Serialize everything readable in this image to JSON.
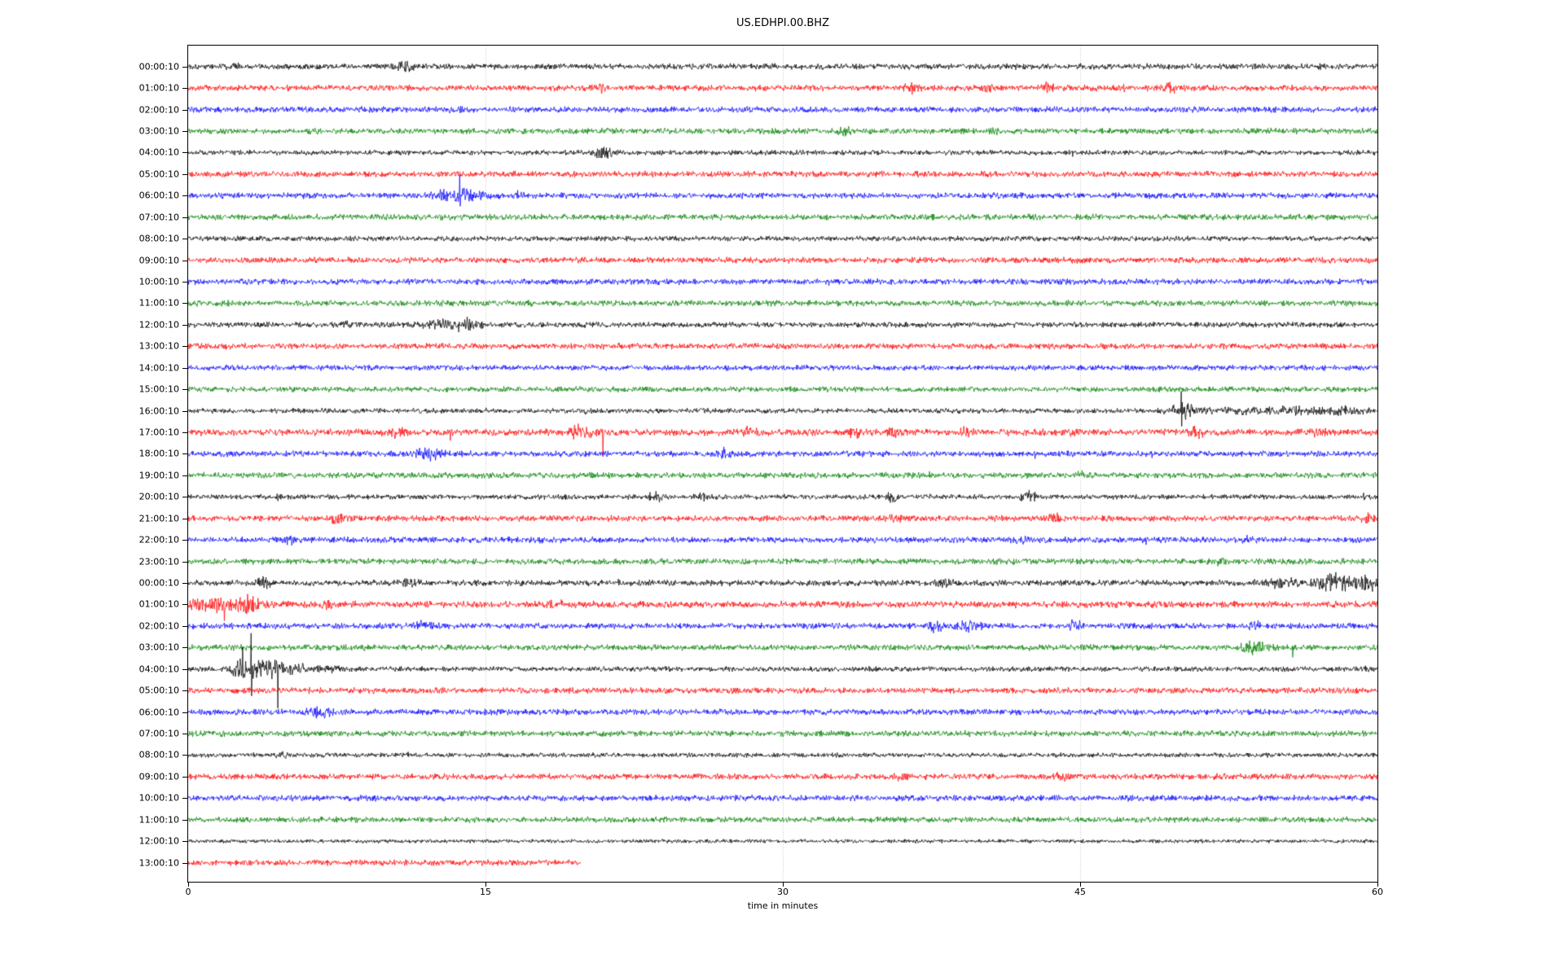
{
  "window": {
    "title": "US.EDHPI.00.BHZ"
  },
  "chart_data": {
    "type": "line",
    "subtype": "seismogram-helicorder-dayplot",
    "title": "US.EDHPI.00.BHZ",
    "xlabel": "time in minutes",
    "xlim": [
      0,
      60
    ],
    "xticks": [
      "0",
      "15",
      "30",
      "45",
      "60"
    ],
    "xtick_values": [
      0,
      15,
      30,
      45,
      60
    ],
    "grid_x": [
      15,
      30,
      45
    ],
    "grid_style": "dotted",
    "grid_color": "#b3b3b3",
    "legend": "none",
    "trace_colors_cycle": [
      "#000000",
      "#ff0000",
      "#0000ff",
      "#008000"
    ],
    "rows": [
      {
        "label": "00:00:10",
        "color": "#000000",
        "amp": 2.8,
        "end": 60,
        "events": [
          {
            "t": 2.3,
            "amp": 2,
            "w": 0.3
          },
          {
            "t": 10.9,
            "amp": 3.5,
            "w": 0.5
          },
          {
            "t": 57.1,
            "up": 4,
            "down": 4
          }
        ]
      },
      {
        "label": "01:00:10",
        "color": "#ff0000",
        "amp": 2.8,
        "end": 60,
        "events": [
          {
            "t": 20.8,
            "amp": 2.5,
            "w": 0.25
          },
          {
            "t": 36.5,
            "up": 7,
            "down": 8
          },
          {
            "t": 36.5,
            "amp": 3,
            "w": 0.35
          },
          {
            "t": 40.3,
            "amp": 3,
            "w": 0.25
          },
          {
            "t": 43.4,
            "amp": 3.5,
            "w": 0.3
          },
          {
            "t": 47.2,
            "up": 5,
            "down": 5
          },
          {
            "t": 49.6,
            "amp": 3,
            "w": 0.4
          }
        ]
      },
      {
        "label": "02:00:10",
        "color": "#0000ff",
        "amp": 2.8,
        "end": 60,
        "events": [
          {
            "t": 13.5,
            "amp": 1.5,
            "w": 0.3
          }
        ]
      },
      {
        "label": "03:00:10",
        "color": "#008000",
        "amp": 2.8,
        "end": 60,
        "events": [
          {
            "t": 33.1,
            "amp": 2.5,
            "w": 0.4
          },
          {
            "t": 40.6,
            "amp": 2,
            "w": 0.25
          }
        ]
      },
      {
        "label": "04:00:10",
        "color": "#000000",
        "amp": 2.4,
        "end": 60,
        "events": [
          {
            "t": 21,
            "amp": 4,
            "w": 0.5
          },
          {
            "t": 21.1,
            "up": 6,
            "down": 6
          },
          {
            "t": 44.6,
            "up": 2,
            "down": 5
          }
        ]
      },
      {
        "label": "05:00:10",
        "color": "#ff0000",
        "amp": 2.8,
        "end": 60,
        "events": []
      },
      {
        "label": "06:00:10",
        "color": "#0000ff",
        "amp": 2.8,
        "end": 60,
        "events": [
          {
            "t": 13.6,
            "amp": 5,
            "w": 1.1
          },
          {
            "t": 12.9,
            "up": 8,
            "down": 4
          },
          {
            "t": 13.7,
            "up": 26,
            "down": 13
          },
          {
            "t": 16.6,
            "amp": 2,
            "w": 0.2
          }
        ]
      },
      {
        "label": "07:00:10",
        "color": "#008000",
        "amp": 2.8,
        "end": 60,
        "events": []
      },
      {
        "label": "08:00:10",
        "color": "#000000",
        "amp": 2.4,
        "end": 60,
        "events": []
      },
      {
        "label": "09:00:10",
        "color": "#ff0000",
        "amp": 2.8,
        "end": 60,
        "events": []
      },
      {
        "label": "10:00:10",
        "color": "#0000ff",
        "amp": 2.8,
        "end": 60,
        "events": [
          {
            "t": 32.3,
            "up": 2,
            "down": 5
          }
        ]
      },
      {
        "label": "11:00:10",
        "color": "#008000",
        "amp": 2.8,
        "end": 60,
        "events": []
      },
      {
        "label": "12:00:10",
        "color": "#000000",
        "amp": 2.6,
        "end": 60,
        "events": [
          {
            "t": 8,
            "amp": 2.5,
            "w": 0.4
          },
          {
            "t": 12.5,
            "amp": 3,
            "w": 0.8
          },
          {
            "t": 14,
            "amp": 5,
            "w": 0.7
          },
          {
            "t": 14.2,
            "up": 7,
            "down": 7
          }
        ]
      },
      {
        "label": "13:00:10",
        "color": "#ff0000",
        "amp": 2.8,
        "end": 60,
        "events": []
      },
      {
        "label": "14:00:10",
        "color": "#0000ff",
        "amp": 2.6,
        "end": 60,
        "events": []
      },
      {
        "label": "15:00:10",
        "color": "#008000",
        "amp": 2.6,
        "end": 60,
        "events": []
      },
      {
        "label": "16:00:10",
        "color": "#000000",
        "amp": 2.4,
        "end": 60,
        "events": [
          {
            "t": 20.1,
            "amp": 2,
            "w": 0.15
          },
          {
            "t": 50.1,
            "up": 24,
            "down": 19
          },
          {
            "t": 50.3,
            "amp": 5,
            "w": 0.7
          },
          {
            "t": 53,
            "amp": 1.5,
            "w": 2
          },
          {
            "t": 56,
            "amp": 3,
            "w": 1.2
          },
          {
            "t": 55.9,
            "up": 6,
            "down": 4
          },
          {
            "t": 58.5,
            "amp": 3,
            "w": 0.8
          }
        ]
      },
      {
        "label": "17:00:10",
        "color": "#ff0000",
        "amp": 3.2,
        "end": 60,
        "events": [
          {
            "t": 10.5,
            "amp": 4,
            "w": 0.5
          },
          {
            "t": 13.2,
            "up": 3,
            "down": 10
          },
          {
            "t": 19.8,
            "amp": 5,
            "w": 0.6
          },
          {
            "t": 20.9,
            "up": 4,
            "down": 30
          },
          {
            "t": 28.4,
            "amp": 4,
            "w": 0.5
          },
          {
            "t": 33.6,
            "amp": 3,
            "w": 0.3
          },
          {
            "t": 35.6,
            "amp": 4,
            "w": 0.3
          },
          {
            "t": 39.2,
            "amp": 3,
            "w": 0.3
          },
          {
            "t": 44.5,
            "amp": 2.5,
            "w": 0.3
          },
          {
            "t": 51,
            "amp": 4,
            "w": 0.5
          },
          {
            "t": 57,
            "amp": 2,
            "w": 0.5
          }
        ]
      },
      {
        "label": "18:00:10",
        "color": "#0000ff",
        "amp": 2.8,
        "end": 60,
        "events": [
          {
            "t": 12.2,
            "amp": 4,
            "w": 0.7
          },
          {
            "t": 27,
            "amp": 3.5,
            "w": 0.4
          },
          {
            "t": 42.7,
            "up": 3,
            "down": 6
          },
          {
            "t": 48.6,
            "up": 3,
            "down": 5
          }
        ]
      },
      {
        "label": "19:00:10",
        "color": "#008000",
        "amp": 2.8,
        "end": 60,
        "events": [
          {
            "t": 37.4,
            "up": 5,
            "down": 3
          },
          {
            "t": 45.1,
            "amp": 2.5,
            "w": 0.3
          }
        ]
      },
      {
        "label": "20:00:10",
        "color": "#000000",
        "amp": 2.4,
        "end": 60,
        "events": [
          {
            "t": 4.5,
            "up": 4,
            "down": 5
          },
          {
            "t": 23.6,
            "amp": 4,
            "w": 0.3
          },
          {
            "t": 23.6,
            "up": 7,
            "down": 4
          },
          {
            "t": 25.9,
            "amp": 3,
            "w": 0.25
          },
          {
            "t": 35.5,
            "amp": 3,
            "w": 0.3
          },
          {
            "t": 42.4,
            "amp": 4,
            "w": 0.5
          },
          {
            "t": 59.3,
            "up": 5,
            "down": 4
          }
        ]
      },
      {
        "label": "21:00:10",
        "color": "#ff0000",
        "amp": 2.8,
        "end": 60,
        "events": [
          {
            "t": 7.6,
            "amp": 4,
            "w": 0.4
          },
          {
            "t": 35.6,
            "amp": 3,
            "w": 0.3
          },
          {
            "t": 43.7,
            "amp": 3.5,
            "w": 0.3
          },
          {
            "t": 59.6,
            "amp": 4,
            "w": 0.4
          }
        ]
      },
      {
        "label": "22:00:10",
        "color": "#0000ff",
        "amp": 2.8,
        "end": 60,
        "events": [
          {
            "t": 5.1,
            "amp": 3,
            "w": 0.3
          },
          {
            "t": 17.8,
            "amp": 3,
            "w": 0.3
          },
          {
            "t": 42.1,
            "amp": 3.5,
            "w": 0.3
          },
          {
            "t": 48.3,
            "up": 3,
            "down": 6
          },
          {
            "t": 53.5,
            "amp": 2,
            "w": 0.3
          }
        ]
      },
      {
        "label": "23:00:10",
        "color": "#008000",
        "amp": 2.8,
        "end": 60,
        "events": [
          {
            "t": 52,
            "amp": 2,
            "w": 0.3
          },
          {
            "t": 58.3,
            "up": 4,
            "down": 3
          }
        ]
      },
      {
        "label": "00:00:10",
        "color": "#000000",
        "amp": 2.8,
        "end": 60,
        "events": [
          {
            "t": 3.8,
            "amp": 5,
            "w": 0.4
          },
          {
            "t": 3.8,
            "up": 6,
            "down": 6
          },
          {
            "t": 11.2,
            "amp": 3,
            "w": 0.4
          },
          {
            "t": 21.7,
            "up": 5,
            "down": 3
          },
          {
            "t": 38.3,
            "amp": 3.5,
            "w": 0.4
          },
          {
            "t": 55,
            "amp": 3,
            "w": 1
          },
          {
            "t": 57.8,
            "amp": 8,
            "w": 0.8
          },
          {
            "t": 57.6,
            "up": 12,
            "down": 10
          },
          {
            "t": 59.2,
            "up": 8,
            "down": 8
          },
          {
            "t": 59.5,
            "amp": 6,
            "w": 0.5
          }
        ]
      },
      {
        "label": "01:00:10",
        "color": "#ff0000",
        "amp": 3.2,
        "end": 60,
        "events": [
          {
            "t": 0.5,
            "amp": 5,
            "w": 0.5
          },
          {
            "t": 1.5,
            "amp": 5,
            "w": 0.5
          },
          {
            "t": 1.8,
            "up": 4,
            "down": 20
          },
          {
            "t": 3,
            "amp": 8,
            "w": 0.7
          },
          {
            "t": 7,
            "amp": 2,
            "w": 0.3
          },
          {
            "t": 18.5,
            "amp": 3,
            "w": 0.4
          }
        ]
      },
      {
        "label": "02:00:10",
        "color": "#0000ff",
        "amp": 2.8,
        "end": 60,
        "events": [
          {
            "t": 0.8,
            "up": 4,
            "down": 3
          },
          {
            "t": 2.2,
            "up": 4,
            "down": 4
          },
          {
            "t": 11.8,
            "amp": 3,
            "w": 0.5
          },
          {
            "t": 12.2,
            "up": 5,
            "down": 3
          },
          {
            "t": 37.8,
            "amp": 4,
            "w": 0.4
          },
          {
            "t": 39.3,
            "amp": 4,
            "w": 0.5
          },
          {
            "t": 40,
            "up": 5,
            "down": 5
          },
          {
            "t": 44.7,
            "amp": 4,
            "w": 0.4
          },
          {
            "t": 53.8,
            "amp": 2.5,
            "w": 0.3
          }
        ]
      },
      {
        "label": "03:00:10",
        "color": "#008000",
        "amp": 2.8,
        "end": 60,
        "events": [
          {
            "t": 53.8,
            "amp": 5,
            "w": 0.6
          },
          {
            "t": 54,
            "up": 7,
            "down": 5
          },
          {
            "t": 55.7,
            "up": 2,
            "down": 12
          }
        ]
      },
      {
        "label": "04:00:10",
        "color": "#000000",
        "amp": 2.4,
        "end": 60,
        "events": [
          {
            "t": 2.5,
            "amp": 6,
            "w": 0.4
          },
          {
            "t": 2.75,
            "up": 27,
            "down": 11
          },
          {
            "t": 3.3,
            "amp": 7,
            "w": 0.8
          },
          {
            "t": 3.17,
            "up": 44,
            "down": 33
          },
          {
            "t": 4.5,
            "up": 4,
            "down": 48
          },
          {
            "t": 4.3,
            "amp": 6,
            "w": 0.6
          },
          {
            "t": 5.5,
            "amp": 3,
            "w": 0.8
          },
          {
            "t": 7,
            "amp": 1.5,
            "w": 1
          },
          {
            "t": 59.4,
            "up": 4,
            "down": 3
          }
        ]
      },
      {
        "label": "05:00:10",
        "color": "#ff0000",
        "amp": 2.8,
        "end": 60,
        "events": []
      },
      {
        "label": "06:00:10",
        "color": "#0000ff",
        "amp": 2.8,
        "end": 60,
        "events": [
          {
            "t": 6.6,
            "amp": 5,
            "w": 0.5
          },
          {
            "t": 6.5,
            "up": 7,
            "down": 5
          },
          {
            "t": 7.1,
            "up": 5,
            "down": 6
          }
        ]
      },
      {
        "label": "07:00:10",
        "color": "#008000",
        "amp": 2.8,
        "end": 60,
        "events": []
      },
      {
        "label": "08:00:10",
        "color": "#000000",
        "amp": 2.2,
        "end": 60,
        "events": [
          {
            "t": 5,
            "amp": 1.5,
            "w": 0.5
          },
          {
            "t": 11.1,
            "up": 4,
            "down": 2
          }
        ]
      },
      {
        "label": "09:00:10",
        "color": "#ff0000",
        "amp": 2.8,
        "end": 60,
        "events": [
          {
            "t": 36,
            "amp": 2,
            "w": 0.3
          },
          {
            "t": 44.1,
            "amp": 3,
            "w": 0.4
          }
        ]
      },
      {
        "label": "10:00:10",
        "color": "#0000ff",
        "amp": 2.8,
        "end": 60,
        "events": [
          {
            "t": 47.5,
            "amp": 2,
            "w": 0.2
          }
        ]
      },
      {
        "label": "11:00:10",
        "color": "#008000",
        "amp": 2.7,
        "end": 60,
        "events": []
      },
      {
        "label": "12:00:10",
        "color": "#000000",
        "amp": 1.8,
        "end": 60,
        "events": []
      },
      {
        "label": "13:00:10",
        "color": "#ff0000",
        "amp": 2.8,
        "end": 19.8,
        "events": []
      }
    ]
  }
}
